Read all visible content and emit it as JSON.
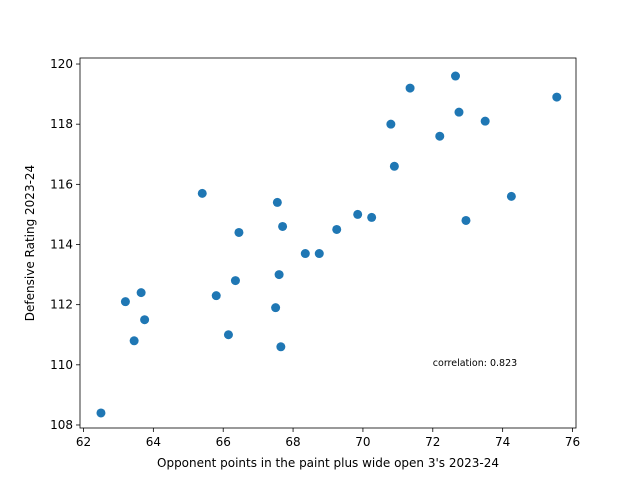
{
  "chart_data": {
    "type": "scatter",
    "xlabel": "Opponent points in the paint plus wide open 3's 2023-24",
    "ylabel": "Defensive Rating 2023-24",
    "xlim": [
      61.9,
      76.1
    ],
    "ylim": [
      107.9,
      120.2
    ],
    "xticks": [
      62,
      64,
      66,
      68,
      70,
      72,
      74,
      76
    ],
    "yticks": [
      108,
      110,
      112,
      114,
      116,
      118,
      120
    ],
    "grid": false,
    "marker_color": "#1f77b4",
    "annotation": {
      "text": "correlation: 0.823",
      "x": 72.0,
      "y": 110.0
    },
    "points": [
      {
        "x": 62.5,
        "y": 108.4
      },
      {
        "x": 63.2,
        "y": 112.1
      },
      {
        "x": 63.45,
        "y": 110.8
      },
      {
        "x": 63.65,
        "y": 112.4
      },
      {
        "x": 63.75,
        "y": 111.5
      },
      {
        "x": 65.4,
        "y": 115.7
      },
      {
        "x": 65.8,
        "y": 112.3
      },
      {
        "x": 66.15,
        "y": 111.0
      },
      {
        "x": 66.35,
        "y": 112.8
      },
      {
        "x": 66.45,
        "y": 114.4
      },
      {
        "x": 67.5,
        "y": 111.9
      },
      {
        "x": 67.55,
        "y": 115.4
      },
      {
        "x": 67.6,
        "y": 113.0
      },
      {
        "x": 67.65,
        "y": 110.6
      },
      {
        "x": 67.7,
        "y": 114.6
      },
      {
        "x": 68.35,
        "y": 113.7
      },
      {
        "x": 68.75,
        "y": 113.7
      },
      {
        "x": 69.25,
        "y": 114.5
      },
      {
        "x": 69.85,
        "y": 115.0
      },
      {
        "x": 70.25,
        "y": 114.9
      },
      {
        "x": 70.8,
        "y": 118.0
      },
      {
        "x": 70.9,
        "y": 116.6
      },
      {
        "x": 71.35,
        "y": 119.2
      },
      {
        "x": 72.2,
        "y": 117.6
      },
      {
        "x": 72.65,
        "y": 119.6
      },
      {
        "x": 72.75,
        "y": 118.4
      },
      {
        "x": 72.95,
        "y": 114.8
      },
      {
        "x": 73.5,
        "y": 118.1
      },
      {
        "x": 74.25,
        "y": 115.6
      },
      {
        "x": 75.55,
        "y": 118.9
      }
    ]
  }
}
